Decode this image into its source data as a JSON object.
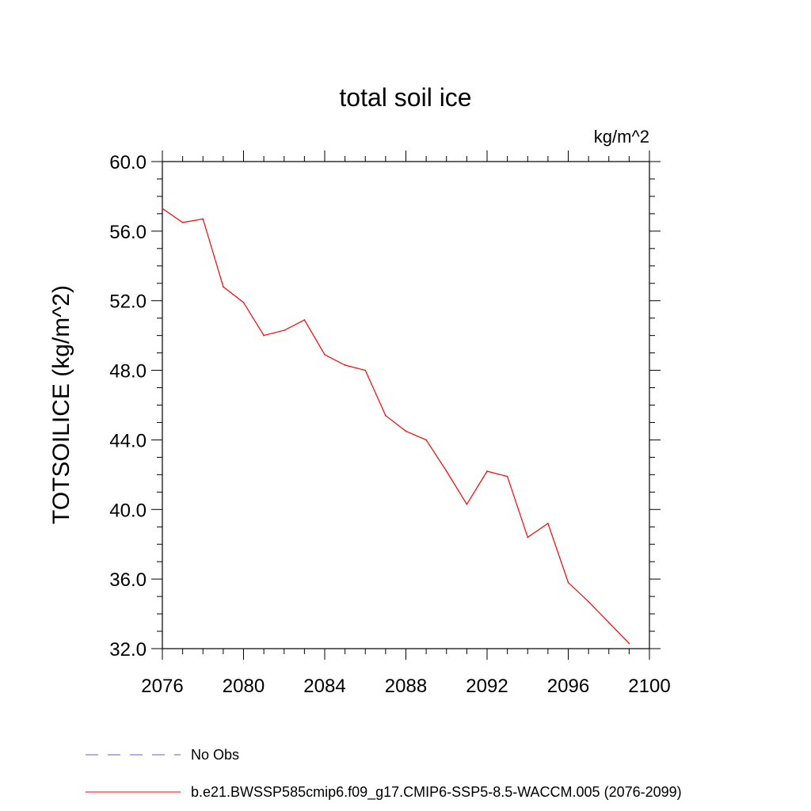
{
  "chart_data": {
    "type": "line",
    "title": "total soil ice",
    "units_label": "kg/m^2",
    "ylabel": "TOTSOILICE  (kg/m^2)",
    "xlabel": "",
    "xlim": [
      2076,
      2100
    ],
    "ylim": [
      32.0,
      60.0
    ],
    "x_ticks": [
      "2076",
      "2080",
      "2084",
      "2088",
      "2092",
      "2096",
      "2100"
    ],
    "y_ticks": [
      "32.0",
      "36.0",
      "40.0",
      "44.0",
      "48.0",
      "52.0",
      "56.0",
      "60.0"
    ],
    "grid": false,
    "series": [
      {
        "name": "b.e21.BWSSP585cmip6.f09_g17.CMIP6-SSP5-8.5-WACCM.005 (2076-2099)",
        "color": "#ff0000",
        "x": [
          2076,
          2077,
          2078,
          2079,
          2080,
          2081,
          2082,
          2083,
          2084,
          2085,
          2086,
          2087,
          2088,
          2089,
          2090,
          2091,
          2092,
          2093,
          2094,
          2095,
          2096,
          2097,
          2098,
          2099
        ],
        "y": [
          57.3,
          56.5,
          56.7,
          52.8,
          51.9,
          50.0,
          50.3,
          50.9,
          48.9,
          48.3,
          48.0,
          45.4,
          44.5,
          44.0,
          42.2,
          40.3,
          42.2,
          41.9,
          38.4,
          39.2,
          35.8,
          34.7,
          33.5,
          32.3
        ]
      }
    ],
    "legend": [
      {
        "label": "No Obs",
        "color": "#6a5acd",
        "style": "dashed"
      },
      {
        "label": "b.e21.BWSSP585cmip6.f09_g17.CMIP6-SSP5-8.5-WACCM.005 (2076-2099)",
        "color": "#ff0000",
        "style": "solid"
      }
    ]
  }
}
